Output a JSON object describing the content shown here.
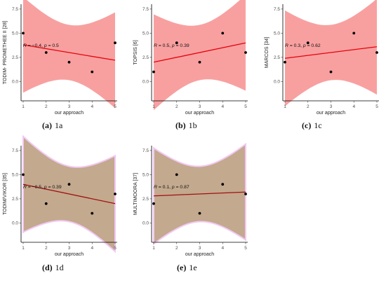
{
  "chart_data": [
    {
      "type": "scatter",
      "panel_label": "(a)",
      "caption": "1a",
      "xlabel": "our approach",
      "ylabel": "TODIM- PROMETHEE II [28]",
      "xlim": [
        1,
        5
      ],
      "ylim": [
        -2,
        8
      ],
      "xticks": [
        "1",
        "2",
        "3",
        "4",
        "5"
      ],
      "yticks": [
        "0.0",
        "2.5",
        "5.0",
        "7.5"
      ],
      "x": [
        1,
        2,
        3,
        4,
        5
      ],
      "y": [
        5,
        3,
        2,
        1,
        4
      ],
      "fit": {
        "intercept": 4.2,
        "slope": -0.4
      },
      "band_color": "#f8a0a0",
      "line_color": "#e8000b",
      "annotation": {
        "R_prefix": "R = ",
        "R_value": "−0.4",
        "sep": ", ",
        "p_prefix": "p = ",
        "p_value": "0.5"
      }
    },
    {
      "type": "scatter",
      "panel_label": "(b)",
      "caption": "1b",
      "xlabel": "our approach",
      "ylabel": "TOPSIS [6]",
      "xlim": [
        1,
        5
      ],
      "ylim": [
        -2,
        8
      ],
      "xticks": [
        "1",
        "2",
        "3",
        "4",
        "5"
      ],
      "yticks": [
        "0.0",
        "2.5",
        "5.0",
        "7.5"
      ],
      "x": [
        1,
        2,
        3,
        4,
        5
      ],
      "y": [
        1,
        4,
        2,
        5,
        3
      ],
      "fit": {
        "intercept": 1.5,
        "slope": 0.5
      },
      "band_color": "#f8a0a0",
      "line_color": "#e8000b",
      "annotation": {
        "R_prefix": "R = ",
        "R_value": "0.5",
        "sep": ", ",
        "p_prefix": "p = ",
        "p_value": "0.39"
      }
    },
    {
      "type": "scatter",
      "panel_label": "(c)",
      "caption": "1c",
      "xlabel": "our approach",
      "ylabel": "MARCOS [34]",
      "xlim": [
        1,
        5
      ],
      "ylim": [
        -2,
        8
      ],
      "xticks": [
        "1",
        "2",
        "3",
        "4",
        "5"
      ],
      "yticks": [
        "0.0",
        "2.5",
        "5.0",
        "7.5"
      ],
      "x": [
        1,
        2,
        3,
        4,
        5
      ],
      "y": [
        2,
        4,
        1,
        5,
        3
      ],
      "fit": {
        "intercept": 2.1,
        "slope": 0.3
      },
      "band_color": "#f8a0a0",
      "line_color": "#e8000b",
      "annotation": {
        "R_prefix": "R = ",
        "R_value": "0.3",
        "sep": ", ",
        "p_prefix": "p = ",
        "p_value": "0.62"
      }
    },
    {
      "type": "scatter",
      "panel_label": "(d)",
      "caption": "1d",
      "xlabel": "our approach",
      "ylabel": "TODIM/VIKOR [35]",
      "xlim": [
        1,
        5
      ],
      "ylim": [
        -2,
        8
      ],
      "xticks": [
        "1",
        "2",
        "3",
        "4",
        "5"
      ],
      "yticks": [
        "0.0",
        "2.5",
        "5.0",
        "7.5"
      ],
      "x": [
        1,
        2,
        3,
        4,
        5
      ],
      "y": [
        5,
        2,
        4,
        1,
        3
      ],
      "fit": {
        "intercept": 4.5,
        "slope": -0.5
      },
      "band_color": "#b89a7a",
      "line_color": "#a01010",
      "annotation": {
        "R_prefix": "R = ",
        "R_value": "−0.5",
        "sep": ", ",
        "p_prefix": "p = ",
        "p_value": "0.39"
      }
    },
    {
      "type": "scatter",
      "panel_label": "(e)",
      "caption": "1e",
      "xlabel": "our approach",
      "ylabel": "MULTIMOORA [37]",
      "xlim": [
        1,
        5
      ],
      "ylim": [
        -2,
        8
      ],
      "xticks": [
        "1",
        "2",
        "3",
        "4",
        "5"
      ],
      "yticks": [
        "0.0",
        "2.5",
        "5.0",
        "7.5"
      ],
      "x": [
        1,
        2,
        3,
        4,
        5
      ],
      "y": [
        2,
        5,
        1,
        4,
        3
      ],
      "fit": {
        "intercept": 2.7,
        "slope": 0.1
      },
      "band_color": "#b89a7a",
      "line_color": "#a01010",
      "annotation": {
        "R_prefix": "R = ",
        "R_value": "0.1",
        "sep": ", ",
        "p_prefix": "p = ",
        "p_value": "0.87"
      }
    }
  ]
}
